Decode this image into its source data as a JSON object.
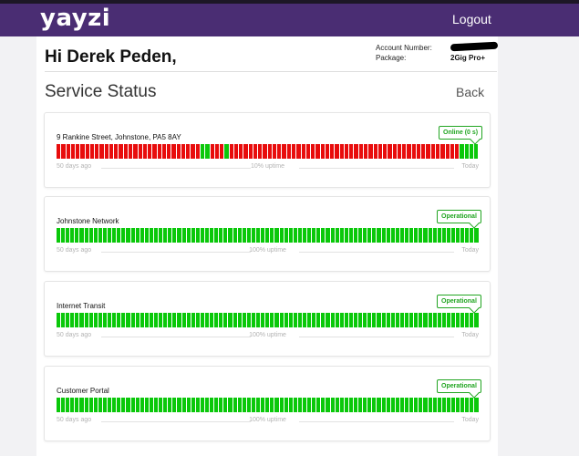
{
  "header": {
    "logo": "yayzi",
    "logout_label": "Logout"
  },
  "account": {
    "greeting": "Hi Derek Peden,",
    "number_label": "Account Number:",
    "package_label": "Package:",
    "package_value": "2Gig Pro+"
  },
  "page": {
    "title": "Service Status",
    "back_label": "Back"
  },
  "colors": {
    "header": "#4a2d73",
    "operational": "#0ac80a",
    "outage": "#e80c0c",
    "badge": "#21a521"
  },
  "legend": {
    "left": "50 days ago",
    "right": "Today"
  },
  "services": [
    {
      "name": "9 Rankine Street, Johnstone, PA5 8AY",
      "status": "Online (0 s)",
      "uptime_label": "10% uptime",
      "days": "dddddddddddddddddddddddddddddduudddudddddddddddddddddddddddddddddddddddddddddddddddduuuu"
    },
    {
      "name": "Johnstone Network",
      "status": "Operational",
      "uptime_label": "100% uptime",
      "days": "uuuuuuuuuuuuuuuuuuuuuuuuuuuuuuuuuuuuuuuuuuuuuuuuuuuuuuuuuuuuuuuuuuuuuuuuuuuuuuuuuuuuuuuuuuu"
    },
    {
      "name": "Internet Transit",
      "status": "Operational",
      "uptime_label": "100% uptime",
      "days": "uuuuuuuuuuuuuuuuuuuuuuuuuuuuuuuuuuuuuuuuuuuuuuuuuuuuuuuuuuuuuuuuuuuuuuuuuuuuuuuuuuuuuuuuuuu"
    },
    {
      "name": "Customer Portal",
      "status": "Operational",
      "uptime_label": "100% uptime",
      "days": "uuuuuuuuuuuuuuuuuuuuuuuuuuuuuuuuuuuuuuuuuuuuuuuuuuuuuuuuuuuuuuuuuuuuuuuuuuuuuuuuuuuuuuuuuuu"
    }
  ]
}
